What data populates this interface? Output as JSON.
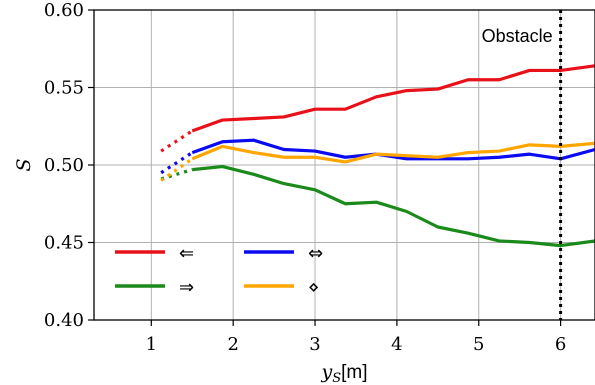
{
  "chart_data": {
    "type": "line",
    "xlabel_var": "y",
    "xlabel_sub": "S",
    "xlabel_unit": "[m]",
    "ylabel": "S",
    "xlim": [
      0.3,
      6.42
    ],
    "ylim": [
      0.4,
      0.6
    ],
    "xticks": [
      1,
      2,
      3,
      4,
      5,
      6
    ],
    "yticks": [
      0.4,
      0.45,
      0.5,
      0.55,
      0.6
    ],
    "ytick_labels": [
      "0.40",
      "0.45",
      "0.50",
      "0.55",
      "0.60"
    ],
    "grid": true,
    "legend_placement": "lower-left",
    "annotations": [
      {
        "text": "Obstacle",
        "x": 6.0,
        "style": "dotted-vertical-line",
        "color": "#000000"
      }
    ],
    "series": [
      {
        "name": "⇐",
        "color": "#e8111a",
        "dotted_segment": {
          "x": [
            1.12,
            1.5
          ],
          "y": [
            0.509,
            0.522
          ]
        },
        "x": [
          1.5,
          1.87,
          2.25,
          2.62,
          3.0,
          3.37,
          3.75,
          4.12,
          4.5,
          4.87,
          5.25,
          5.62,
          6.0,
          6.42
        ],
        "y": [
          0.522,
          0.529,
          0.53,
          0.531,
          0.536,
          0.536,
          0.544,
          0.548,
          0.549,
          0.555,
          0.555,
          0.561,
          0.561,
          0.564
        ]
      },
      {
        "name": "⇔",
        "color": "#0b0bf2",
        "dotted_segment": {
          "x": [
            1.12,
            1.5
          ],
          "y": [
            0.495,
            0.508
          ]
        },
        "x": [
          1.5,
          1.87,
          2.25,
          2.62,
          3.0,
          3.37,
          3.75,
          4.12,
          4.5,
          4.87,
          5.25,
          5.62,
          6.0,
          6.42
        ],
        "y": [
          0.508,
          0.515,
          0.516,
          0.51,
          0.509,
          0.505,
          0.507,
          0.504,
          0.504,
          0.504,
          0.505,
          0.507,
          0.504,
          0.51
        ]
      },
      {
        "name": "⇒",
        "color": "#1a8a1a",
        "dotted_segment": {
          "x": [
            1.12,
            1.5
          ],
          "y": [
            0.491,
            0.497
          ]
        },
        "x": [
          1.5,
          1.87,
          2.25,
          2.62,
          3.0,
          3.37,
          3.75,
          4.12,
          4.5,
          4.87,
          5.25,
          5.62,
          6.0,
          6.42
        ],
        "y": [
          0.497,
          0.499,
          0.494,
          0.488,
          0.484,
          0.475,
          0.476,
          0.47,
          0.46,
          0.456,
          0.451,
          0.45,
          0.448,
          0.451
        ]
      },
      {
        "name": "⋄",
        "color": "#ffa500",
        "dotted_segment": {
          "x": [
            1.12,
            1.5
          ],
          "y": [
            0.49,
            0.504
          ]
        },
        "x": [
          1.5,
          1.87,
          2.25,
          2.62,
          3.0,
          3.37,
          3.75,
          4.12,
          4.5,
          4.87,
          5.25,
          5.62,
          6.0,
          6.42
        ],
        "y": [
          0.504,
          0.512,
          0.508,
          0.505,
          0.505,
          0.502,
          0.507,
          0.506,
          0.505,
          0.508,
          0.509,
          0.513,
          0.512,
          0.514
        ]
      }
    ],
    "legend_order": [
      0,
      1,
      2,
      3
    ]
  }
}
